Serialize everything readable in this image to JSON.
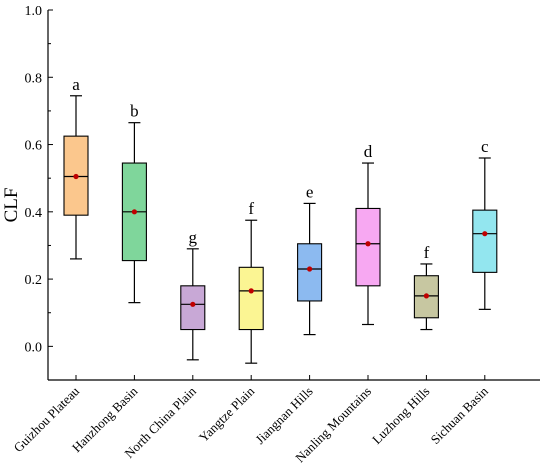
{
  "chart_data": {
    "type": "box",
    "title": "",
    "xlabel": "",
    "ylabel": "CLF",
    "ylim": [
      -0.1,
      1.0
    ],
    "yticks": [
      0.0,
      0.2,
      0.4,
      0.6,
      0.8,
      1.0
    ],
    "ytick_labels": [
      "0.0",
      "0.2",
      "0.4",
      "0.6",
      "0.8",
      "1.0"
    ],
    "grid": false,
    "legend": "none",
    "categories": [
      "Guizhou Plateau",
      "Hanzhong Basin",
      "North China Plain",
      "Yangtze Plain",
      "Jiangnan Hills",
      "Nanling Mountains",
      "Luzhong Hills",
      "Sichuan Basin"
    ],
    "boxes": [
      {
        "whisker_low": 0.26,
        "q1": 0.39,
        "median": 0.505,
        "q3": 0.625,
        "whisker_high": 0.745,
        "mean": 0.505,
        "letter": "a",
        "color": "#fbc78d"
      },
      {
        "whisker_low": 0.13,
        "q1": 0.255,
        "median": 0.4,
        "q3": 0.545,
        "whisker_high": 0.665,
        "mean": 0.4,
        "letter": "b",
        "color": "#7fd69b"
      },
      {
        "whisker_low": -0.04,
        "q1": 0.05,
        "median": 0.125,
        "q3": 0.18,
        "whisker_high": 0.29,
        "mean": 0.125,
        "letter": "g",
        "color": "#c8a8d6"
      },
      {
        "whisker_low": -0.05,
        "q1": 0.05,
        "median": 0.165,
        "q3": 0.235,
        "whisker_high": 0.375,
        "mean": 0.165,
        "letter": "f",
        "color": "#fbf593"
      },
      {
        "whisker_low": 0.035,
        "q1": 0.135,
        "median": 0.23,
        "q3": 0.305,
        "whisker_high": 0.425,
        "mean": 0.23,
        "letter": "e",
        "color": "#8cbaf0"
      },
      {
        "whisker_low": 0.065,
        "q1": 0.18,
        "median": 0.305,
        "q3": 0.41,
        "whisker_high": 0.545,
        "mean": 0.305,
        "letter": "d",
        "color": "#f7a8f2"
      },
      {
        "whisker_low": 0.05,
        "q1": 0.085,
        "median": 0.15,
        "q3": 0.21,
        "whisker_high": 0.245,
        "mean": 0.15,
        "letter": "f",
        "color": "#c7c7a1"
      },
      {
        "whisker_low": 0.11,
        "q1": 0.22,
        "median": 0.335,
        "q3": 0.405,
        "whisker_high": 0.56,
        "mean": 0.335,
        "letter": "c",
        "color": "#93e6ef"
      }
    ],
    "mean_marker_color": "#c00000"
  }
}
